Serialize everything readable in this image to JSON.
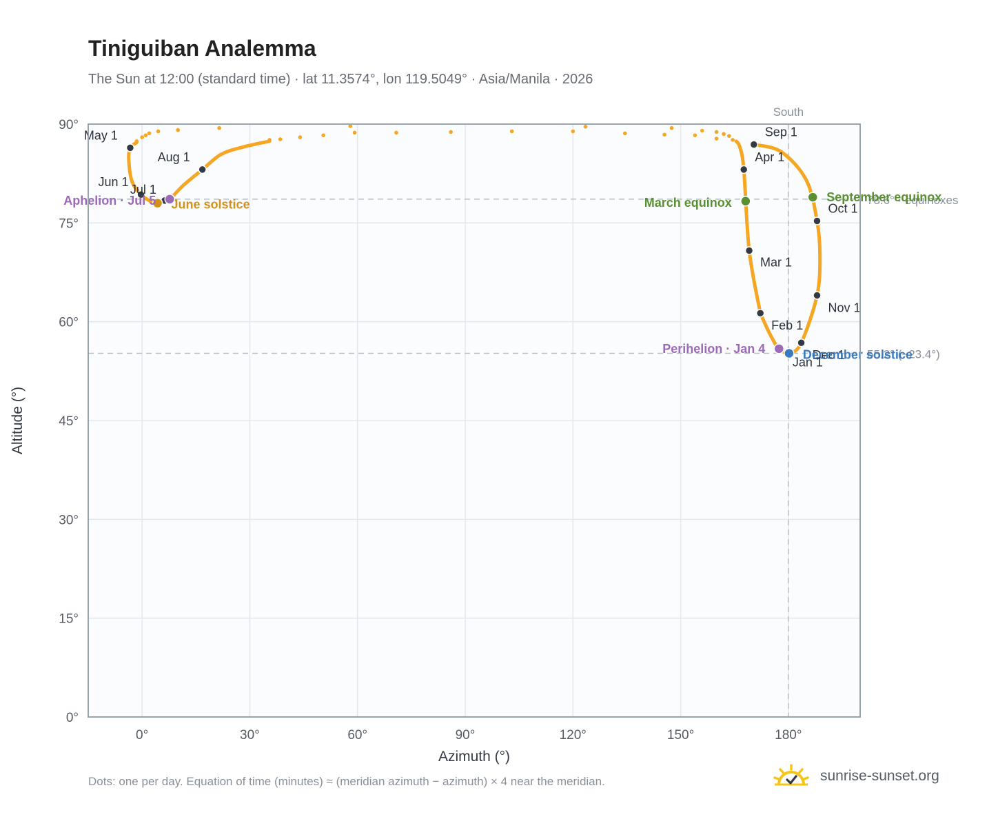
{
  "title": "Tiniguiban Analemma",
  "subtitle": "The Sun at 12:00 (standard time) · lat 11.3574°, lon 119.5049° · Asia/Manila · 2026",
  "footnote": "Dots: one per day. Equation of time (minutes) ≈ (meridian azimuth − azimuth) × 4 near the meridian.",
  "brand": {
    "name": "sunrise-sunset.org",
    "icon": "sun-check-icon"
  },
  "colors": {
    "path": "#f5a623",
    "month_marker": "#333a44",
    "solstice_june": "#d4911a",
    "solstice_december": "#3a7bbf",
    "equinox": "#5a8f32",
    "apsis": "#9b6bb8",
    "reference_line": "#b8bec7",
    "plot_bg": "#fafcfe",
    "grid": "#e4e8ee",
    "axis": "#9aa3b0"
  },
  "chart_data": {
    "type": "scatter",
    "xlabel": "Azimuth (°)",
    "ylabel": "Altitude (°)",
    "xlim": [
      -15,
      200
    ],
    "ylim": [
      0,
      90
    ],
    "xticks": [
      0,
      30,
      60,
      90,
      120,
      150,
      180
    ],
    "yticks": [
      0,
      15,
      30,
      45,
      60,
      75,
      90
    ],
    "xtick_labels": [
      "0°",
      "30°",
      "60°",
      "90°",
      "120°",
      "150°",
      "180°"
    ],
    "ytick_labels": [
      "0°",
      "15°",
      "30°",
      "45°",
      "60°",
      "75°",
      "90°"
    ],
    "grid": true,
    "meridian": {
      "azimuth": 180,
      "label": "South"
    },
    "reference_lines": [
      {
        "altitude": 78.6,
        "label": "78.6° · equinoxes"
      },
      {
        "altitude": 55.2,
        "label": "55.2° (−23.4°)"
      }
    ],
    "month_markers": [
      {
        "label": "Jan 1",
        "az": 180.4,
        "alt": 55.3
      },
      {
        "label": "Feb 1",
        "az": 172.2,
        "alt": 61.3
      },
      {
        "label": "Mar 1",
        "az": 169.1,
        "alt": 70.8
      },
      {
        "label": "Apr 1",
        "az": 167.6,
        "alt": 83.1
      },
      {
        "label": "May 1",
        "az": -3.3,
        "alt": 86.4
      },
      {
        "label": "Jun 1",
        "az": -0.3,
        "alt": 79.3
      },
      {
        "label": "Jul 1",
        "az": 6.3,
        "alt": 78.4
      },
      {
        "label": "Aug 1",
        "az": 16.8,
        "alt": 83.1
      },
      {
        "label": "Sep 1",
        "az": 170.4,
        "alt": 86.9
      },
      {
        "label": "Oct 1",
        "az": 188.0,
        "alt": 75.3
      },
      {
        "label": "Nov 1",
        "az": 188.0,
        "alt": 64.0
      },
      {
        "label": "Dec 1",
        "az": 183.6,
        "alt": 56.8
      }
    ],
    "events": [
      {
        "label": "June solstice",
        "az": 4.3,
        "alt": 78.0,
        "kind": "solstice_june"
      },
      {
        "label": "December solstice",
        "az": 180.2,
        "alt": 55.2,
        "kind": "solstice_december"
      },
      {
        "label": "March equinox",
        "az": 168.1,
        "alt": 78.3,
        "kind": "equinox"
      },
      {
        "label": "September equinox",
        "az": 186.8,
        "alt": 78.9,
        "kind": "equinox"
      },
      {
        "label": "Perihelion · Jan 4",
        "az": 177.4,
        "alt": 55.9,
        "kind": "apsis"
      },
      {
        "label": "Aphelion · Jul 5",
        "az": 7.7,
        "alt": 78.6,
        "kind": "apsis"
      }
    ],
    "path_segments": [
      {
        "name": "winter-spring loop",
        "points": [
          [
            172.2,
            61.3
          ],
          [
            169.1,
            70.8
          ],
          [
            167.6,
            83.1
          ],
          [
            166.5,
            86.5
          ],
          [
            165.5,
            87.4
          ]
        ]
      },
      {
        "name": "autumn-winter loop",
        "points": [
          [
            170.4,
            86.9
          ],
          [
            178.0,
            85.8
          ],
          [
            185.0,
            81.5
          ],
          [
            188.0,
            75.3
          ],
          [
            188.8,
            70.0
          ],
          [
            188.0,
            64.0
          ],
          [
            183.6,
            56.8
          ],
          [
            180.4,
            55.3
          ],
          [
            177.4,
            55.9
          ],
          [
            174.8,
            58.2
          ],
          [
            172.2,
            61.3
          ]
        ]
      },
      {
        "name": "summer loop",
        "points": [
          [
            -1.5,
            87.2
          ],
          [
            -3.3,
            86.4
          ],
          [
            -3.7,
            84.5
          ],
          [
            -2.8,
            81.3
          ],
          [
            -0.3,
            79.3
          ],
          [
            2.3,
            78.3
          ],
          [
            4.3,
            78.0
          ],
          [
            6.3,
            78.4
          ],
          [
            7.7,
            78.6
          ],
          [
            11.5,
            80.7
          ],
          [
            16.8,
            83.1
          ],
          [
            22.0,
            85.4
          ],
          [
            28.0,
            86.5
          ],
          [
            35.5,
            87.4
          ]
        ]
      }
    ],
    "overhead_scatter": [
      [
        -1.5,
        87.4
      ],
      [
        0.0,
        88.0
      ],
      [
        1.0,
        88.3
      ],
      [
        2.0,
        88.6
      ],
      [
        4.5,
        88.9
      ],
      [
        10.0,
        89.1
      ],
      [
        21.5,
        89.4
      ],
      [
        35.5,
        87.6
      ],
      [
        38.5,
        87.7
      ],
      [
        44.0,
        88.0
      ],
      [
        50.5,
        88.3
      ],
      [
        58.0,
        89.7
      ],
      [
        59.2,
        88.7
      ],
      [
        70.8,
        88.7
      ],
      [
        86.0,
        88.8
      ],
      [
        103.0,
        88.9
      ],
      [
        120.0,
        88.9
      ],
      [
        123.5,
        89.6
      ],
      [
        134.5,
        88.6
      ],
      [
        145.5,
        88.4
      ],
      [
        147.5,
        89.4
      ],
      [
        154.0,
        88.3
      ],
      [
        156.0,
        89.0
      ],
      [
        160.0,
        88.8
      ],
      [
        160.0,
        87.8
      ],
      [
        162.0,
        88.5
      ],
      [
        163.5,
        88.2
      ],
      [
        164.5,
        87.6
      ]
    ]
  }
}
